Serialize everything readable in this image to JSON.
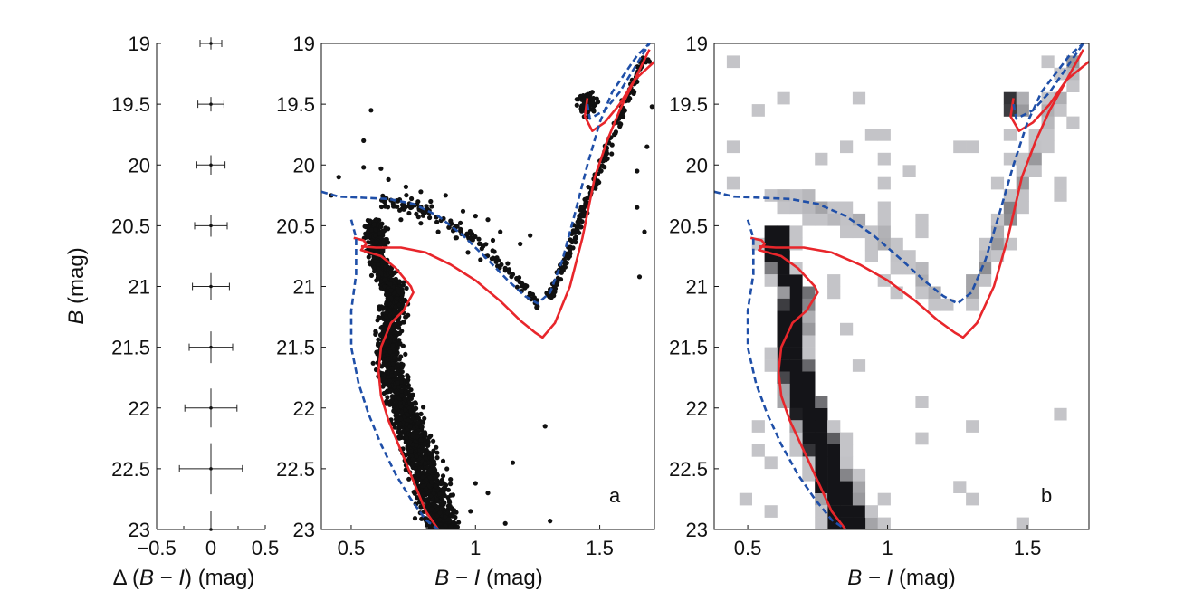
{
  "chart_data": [
    {
      "type": "scatter",
      "panel": "error bars",
      "xlabel_prefix": "Δ (",
      "xlabel_italic_b": "B",
      "xlabel_mid": " − ",
      "xlabel_italic_i": "I",
      "xlabel_suffix": ") (mag)",
      "ylabel_italic": "B",
      "ylabel_suffix": " (mag)",
      "xlim": [
        -0.5,
        0.5
      ],
      "ylim": [
        23,
        19
      ],
      "x_ticks": [
        -0.5,
        0,
        0.5
      ],
      "x_tick_labels": [
        "−0.5",
        "0",
        "0.5"
      ],
      "y_ticks": [
        19,
        19.5,
        20,
        20.5,
        21,
        21.5,
        22,
        22.5,
        23
      ],
      "y_tick_labels": [
        "19",
        "19.5",
        "20",
        "20.5",
        "21",
        "21.5",
        "22",
        "22.5",
        "23"
      ],
      "errors": [
        {
          "B": 19.0,
          "xerr": 0.1,
          "yerr": 0.05
        },
        {
          "B": 19.5,
          "xerr": 0.12,
          "yerr": 0.06
        },
        {
          "B": 20.0,
          "xerr": 0.13,
          "yerr": 0.08
        },
        {
          "B": 20.5,
          "xerr": 0.15,
          "yerr": 0.09
        },
        {
          "B": 21.0,
          "xerr": 0.17,
          "yerr": 0.11
        },
        {
          "B": 21.5,
          "xerr": 0.2,
          "yerr": 0.13
        },
        {
          "B": 22.0,
          "xerr": 0.24,
          "yerr": 0.16
        },
        {
          "B": 22.5,
          "xerr": 0.29,
          "yerr": 0.21
        },
        {
          "B": 23.0,
          "xerr": 0.0,
          "yerr": 0.0
        }
      ]
    },
    {
      "type": "scatter",
      "panel": "a",
      "panel_label": "a",
      "xlabel_italic_b": "B",
      "xlabel_mid": " − ",
      "xlabel_italic_i": "I",
      "xlabel_suffix": " (mag)",
      "xlim": [
        0.38,
        1.72
      ],
      "ylim": [
        23,
        19
      ],
      "x_ticks": [
        0.5,
        1,
        1.5
      ],
      "x_tick_labels": [
        "0.5",
        "1",
        "1.5"
      ],
      "y_ticks": [
        19,
        19.5,
        20,
        20.5,
        21,
        21.5,
        22,
        22.5,
        23
      ],
      "y_tick_labels": [
        "19",
        "19.5",
        "20",
        "20.5",
        "21",
        "21.5",
        "22",
        "22.5",
        "23"
      ],
      "grid": false,
      "outliers": [
        [
          0.58,
          19.55
        ],
        [
          0.55,
          19.8
        ],
        [
          0.55,
          20.02
        ],
        [
          0.62,
          20.03
        ],
        [
          0.65,
          20.12
        ],
        [
          0.72,
          20.18
        ],
        [
          0.78,
          20.22
        ],
        [
          0.82,
          20.3
        ],
        [
          0.88,
          20.25
        ],
        [
          0.95,
          20.38
        ],
        [
          1.0,
          20.42
        ],
        [
          1.05,
          20.45
        ],
        [
          1.1,
          20.55
        ],
        [
          1.18,
          20.65
        ],
        [
          1.22,
          20.58
        ],
        [
          0.92,
          20.6
        ],
        [
          0.97,
          20.72
        ],
        [
          1.02,
          20.78
        ],
        [
          1.07,
          20.62
        ],
        [
          1.12,
          20.85
        ],
        [
          1.15,
          20.9
        ],
        [
          1.2,
          21.0
        ],
        [
          0.85,
          20.55
        ],
        [
          0.78,
          20.48
        ],
        [
          0.7,
          20.45
        ],
        [
          0.45,
          20.1
        ],
        [
          0.42,
          20.25
        ],
        [
          1.28,
          22.15
        ],
        [
          1.0,
          22.62
        ],
        [
          1.15,
          22.45
        ],
        [
          1.05,
          22.7
        ],
        [
          0.98,
          22.85
        ],
        [
          1.12,
          22.95
        ],
        [
          1.3,
          22.93
        ],
        [
          1.65,
          20.05
        ],
        [
          1.65,
          20.35
        ],
        [
          1.68,
          20.55
        ],
        [
          1.66,
          20.92
        ],
        [
          1.7,
          19.15
        ],
        [
          1.63,
          19.3
        ],
        [
          1.69,
          19.85
        ],
        [
          1.71,
          19.52
        ]
      ],
      "series": [
        {
          "name": "",
          "color": "#e8262b",
          "style": "solid",
          "x": [
            0.51,
            0.55,
            0.56,
            0.54,
            0.62,
            0.68,
            0.74,
            0.75,
            0.71,
            0.66,
            0.62,
            0.61,
            0.62,
            0.65,
            0.7,
            0.75,
            0.8,
            0.85
          ],
          "y": [
            20.6,
            20.62,
            20.65,
            20.7,
            20.75,
            20.85,
            21.0,
            21.05,
            21.2,
            21.3,
            21.5,
            21.7,
            21.9,
            22.1,
            22.35,
            22.6,
            22.85,
            23.0
          ]
        },
        {
          "name": "",
          "color": "#e8262b",
          "style": "solid",
          "x": [
            0.54,
            0.6,
            0.7,
            0.8,
            0.9,
            1.0,
            1.1,
            1.18,
            1.24,
            1.27,
            1.32,
            1.38,
            1.43,
            1.48,
            1.53,
            1.58,
            1.64,
            1.72
          ],
          "y": [
            20.67,
            20.68,
            20.68,
            20.72,
            20.82,
            20.95,
            21.12,
            21.28,
            21.38,
            21.42,
            21.3,
            21.0,
            20.6,
            20.1,
            19.8,
            19.55,
            19.3,
            19.15
          ]
        },
        {
          "name": "",
          "color": "#e8262b",
          "style": "solid",
          "x": [
            1.45,
            1.44,
            1.47,
            1.52,
            1.58,
            1.64,
            1.7
          ],
          "y": [
            19.45,
            19.6,
            19.72,
            19.65,
            19.5,
            19.3,
            19.05
          ]
        },
        {
          "name": "",
          "color": "#1f4fa8",
          "style": "dashed",
          "x": [
            0.38,
            0.45,
            0.55,
            0.65,
            0.75,
            0.85,
            0.95,
            1.05,
            1.13,
            1.2,
            1.25,
            1.3,
            1.35,
            1.4,
            1.45,
            1.5,
            1.55,
            1.6,
            1.65,
            1.7
          ],
          "y": [
            20.22,
            20.26,
            20.27,
            20.28,
            20.32,
            20.42,
            20.58,
            20.78,
            20.95,
            21.08,
            21.14,
            21.05,
            20.78,
            20.4,
            20.0,
            19.65,
            19.4,
            19.25,
            19.1,
            19.0
          ]
        },
        {
          "name": "",
          "color": "#1f4fa8",
          "style": "dashed",
          "x": [
            0.5,
            0.52,
            0.52,
            0.5,
            0.5,
            0.53,
            0.57,
            0.62,
            0.68,
            0.74,
            0.8,
            0.85
          ],
          "y": [
            20.45,
            20.6,
            20.9,
            21.2,
            21.5,
            21.8,
            22.05,
            22.3,
            22.55,
            22.75,
            22.92,
            23.0
          ]
        },
        {
          "name": "",
          "color": "#1f4fa8",
          "style": "dashed",
          "x": [
            1.45,
            1.46,
            1.52,
            1.58,
            1.64,
            1.7
          ],
          "y": [
            19.5,
            19.62,
            19.55,
            19.4,
            19.2,
            19.0
          ]
        }
      ]
    },
    {
      "type": "heatmap",
      "panel": "b",
      "panel_label": "b",
      "xlabel_italic_b": "B",
      "xlabel_mid": " − ",
      "xlabel_italic_i": "I",
      "xlabel_suffix": " (mag)",
      "xlim": [
        0.38,
        1.72
      ],
      "ylim": [
        23,
        19
      ],
      "x_ticks": [
        0.5,
        1,
        1.5
      ],
      "x_tick_labels": [
        "0.5",
        "1",
        "1.5"
      ],
      "y_ticks": [
        19,
        19.5,
        20,
        20.5,
        21,
        21.5,
        22,
        22.5,
        23
      ],
      "y_tick_labels": [
        "19",
        "19.5",
        "20",
        "20.5",
        "21",
        "21.5",
        "22",
        "22.5",
        "23"
      ],
      "colormap": "gray_r",
      "overlay": "same isochrones as panel a"
    }
  ]
}
